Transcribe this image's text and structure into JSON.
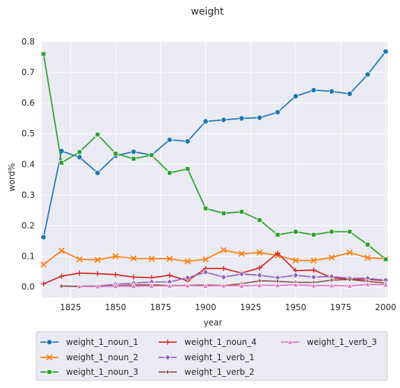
{
  "chart_data": {
    "type": "line",
    "title": "weight",
    "xlabel": "year",
    "ylabel": "word%",
    "xlim": [
      1809,
      2001
    ],
    "ylim": [
      -0.035,
      0.8
    ],
    "x_ticks": [
      1825,
      1850,
      1875,
      1900,
      1925,
      1950,
      1975,
      2000
    ],
    "y_ticks": [
      0.0,
      0.1,
      0.2,
      0.3,
      0.4,
      0.5,
      0.6,
      0.7,
      0.8
    ],
    "x_tick_labels": [
      "1825",
      "1850",
      "1875",
      "1900",
      "1925",
      "1950",
      "1975",
      "2000"
    ],
    "y_tick_labels": [
      "0.0",
      "0.1",
      "0.2",
      "0.3",
      "0.4",
      "0.5",
      "0.6",
      "0.7",
      "0.8"
    ],
    "grid": true,
    "legend_position": "bottom",
    "background": "#eaeaf2",
    "x": [
      1810,
      1820,
      1830,
      1840,
      1850,
      1860,
      1870,
      1880,
      1890,
      1900,
      1910,
      1920,
      1930,
      1940,
      1950,
      1960,
      1970,
      1980,
      1990,
      2000
    ],
    "series": [
      {
        "name": "weight_1_noun_1",
        "color": "#1f77b4",
        "marker": "circle",
        "values": [
          0.162,
          0.443,
          0.423,
          0.372,
          0.428,
          0.441,
          0.43,
          0.48,
          0.475,
          0.54,
          0.545,
          0.55,
          0.552,
          0.57,
          0.622,
          0.642,
          0.638,
          0.63,
          0.693,
          0.768
        ]
      },
      {
        "name": "weight_1_noun_2",
        "color": "#ff7f0e",
        "marker": "x",
        "values": [
          0.073,
          0.118,
          0.09,
          0.088,
          0.1,
          0.093,
          0.092,
          0.092,
          0.083,
          0.09,
          0.12,
          0.108,
          0.112,
          0.103,
          0.086,
          0.086,
          0.096,
          0.112,
          0.095,
          0.092
        ]
      },
      {
        "name": "weight_1_noun_3",
        "color": "#2ca02c",
        "marker": "square",
        "values": [
          0.76,
          0.405,
          0.44,
          0.497,
          0.435,
          0.418,
          0.43,
          0.372,
          0.385,
          0.256,
          0.24,
          0.245,
          0.218,
          0.17,
          0.18,
          0.17,
          0.18,
          0.18,
          0.138,
          0.09
        ]
      },
      {
        "name": "weight_1_noun_4",
        "color": "#d62728",
        "marker": "plus",
        "values": [
          0.01,
          0.035,
          0.045,
          0.043,
          0.04,
          0.032,
          0.03,
          0.038,
          0.02,
          0.06,
          0.06,
          0.045,
          0.062,
          0.11,
          0.053,
          0.055,
          0.03,
          0.025,
          0.025,
          0.02
        ]
      },
      {
        "name": "weight_1_verb_1",
        "color": "#9467bd",
        "marker": "diamond",
        "values": [
          null,
          0.002,
          0.002,
          0.003,
          0.008,
          0.012,
          0.016,
          0.016,
          0.03,
          0.048,
          0.032,
          0.042,
          0.038,
          0.03,
          0.038,
          0.032,
          0.034,
          0.028,
          0.028,
          0.022
        ]
      },
      {
        "name": "weight_1_verb_2",
        "color": "#8c564b",
        "marker": "thin_diamond",
        "values": [
          null,
          0.003,
          0.001,
          0.002,
          0.003,
          0.006,
          0.007,
          0.004,
          0.005,
          0.006,
          0.004,
          0.01,
          0.02,
          0.018,
          0.015,
          0.014,
          0.022,
          0.024,
          0.018,
          0.012
        ]
      },
      {
        "name": "weight_1_verb_3",
        "color": "#e377c2",
        "marker": "triangle",
        "values": [
          null,
          null,
          0.001,
          0.001,
          0.002,
          0.002,
          0.003,
          0.003,
          0.004,
          0.003,
          0.004,
          0.003,
          0.005,
          0.005,
          0.007,
          0.004,
          0.004,
          0.003,
          0.008,
          0.007
        ]
      }
    ]
  }
}
